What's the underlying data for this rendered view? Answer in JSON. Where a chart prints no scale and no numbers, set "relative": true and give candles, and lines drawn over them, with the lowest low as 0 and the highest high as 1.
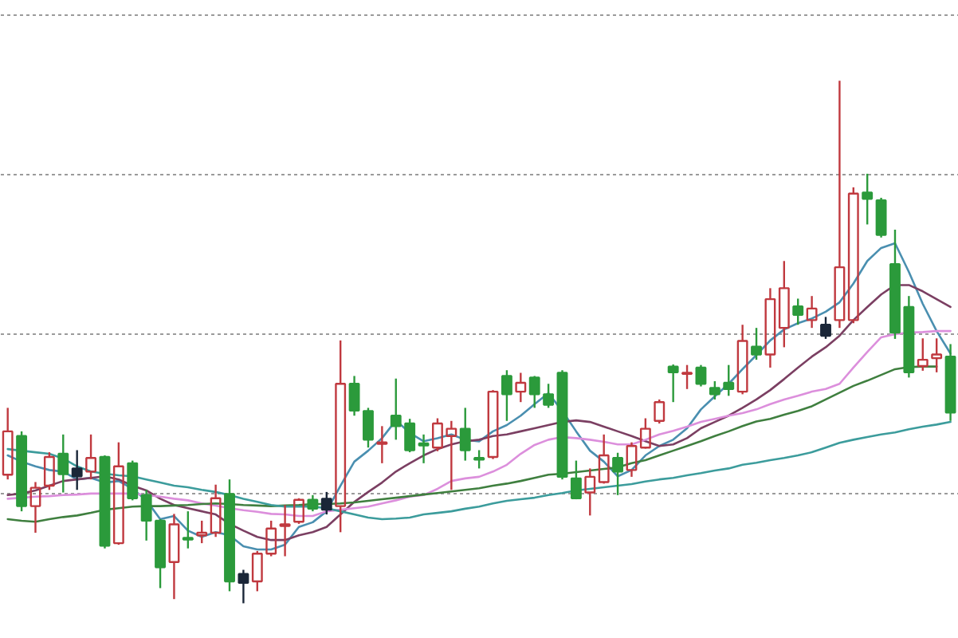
{
  "chart_data": {
    "type": "candlestick",
    "relative": true,
    "grid": "y",
    "categories": [
      null,
      null,
      null,
      null,
      null,
      null,
      null,
      null,
      null,
      null,
      null,
      null,
      null,
      null,
      null,
      null,
      null,
      null,
      null,
      null,
      null,
      null,
      null,
      null,
      null,
      null,
      null,
      null,
      null,
      null,
      null,
      null,
      null,
      null,
      null,
      null,
      null,
      null,
      null,
      null,
      null,
      null,
      null,
      null,
      null,
      null,
      null,
      null,
      null,
      null,
      null,
      null,
      null,
      null,
      null,
      null,
      null,
      null,
      null,
      null,
      null,
      null,
      null,
      null,
      null,
      null,
      null,
      null,
      null
    ],
    "ohlc": [
      [
        0.246,
        0.374,
        0.237,
        0.329
      ],
      [
        0.32,
        0.329,
        0.176,
        0.186
      ],
      [
        0.186,
        0.232,
        0.135,
        0.221
      ],
      [
        0.225,
        0.289,
        0.217,
        0.28
      ],
      [
        0.286,
        0.323,
        0.212,
        0.247
      ],
      [
        0.258,
        0.293,
        0.217,
        0.243
      ],
      [
        0.252,
        0.323,
        0.237,
        0.278
      ],
      [
        0.28,
        0.283,
        0.105,
        0.11
      ],
      [
        0.115,
        0.308,
        0.112,
        0.262
      ],
      [
        0.268,
        0.273,
        0.197,
        0.201
      ],
      [
        0.207,
        0.217,
        0.12,
        0.158
      ],
      [
        0.158,
        0.161,
        0.029,
        0.069
      ],
      [
        0.079,
        0.171,
        0.008,
        0.151
      ],
      [
        0.125,
        0.176,
        0.105,
        0.122
      ],
      [
        0.13,
        0.158,
        0.115,
        0.135
      ],
      [
        0.135,
        0.227,
        0.127,
        0.201
      ],
      [
        0.209,
        0.237,
        0.023,
        0.042
      ],
      [
        0.056,
        0.064,
        0.0,
        0.039
      ],
      [
        0.042,
        0.1,
        0.023,
        0.095
      ],
      [
        0.095,
        0.158,
        0.09,
        0.143
      ],
      [
        0.148,
        0.188,
        0.09,
        0.151
      ],
      [
        0.156,
        0.201,
        0.152,
        0.198
      ],
      [
        0.198,
        0.207,
        0.176,
        0.181
      ],
      [
        0.2,
        0.213,
        0.17,
        0.179
      ],
      [
        0.186,
        0.503,
        0.136,
        0.42
      ],
      [
        0.42,
        0.435,
        0.359,
        0.369
      ],
      [
        0.368,
        0.374,
        0.298,
        0.313
      ],
      [
        0.305,
        0.339,
        0.268,
        0.308
      ],
      [
        0.359,
        0.43,
        0.313,
        0.339
      ],
      [
        0.344,
        0.353,
        0.289,
        0.293
      ],
      [
        0.306,
        0.323,
        0.268,
        0.302
      ],
      [
        0.298,
        0.354,
        0.291,
        0.344
      ],
      [
        0.32,
        0.349,
        0.217,
        0.334
      ],
      [
        0.334,
        0.374,
        0.273,
        0.293
      ],
      [
        0.278,
        0.293,
        0.258,
        0.275
      ],
      [
        0.28,
        0.408,
        0.276,
        0.405
      ],
      [
        0.435,
        0.446,
        0.349,
        0.4
      ],
      [
        0.405,
        0.441,
        0.385,
        0.422
      ],
      [
        0.432,
        0.435,
        0.374,
        0.4
      ],
      [
        0.4,
        0.42,
        0.374,
        0.38
      ],
      [
        0.441,
        0.446,
        0.237,
        0.242
      ],
      [
        0.239,
        0.273,
        0.199,
        0.201
      ],
      [
        0.212,
        0.258,
        0.168,
        0.242
      ],
      [
        0.232,
        0.323,
        0.229,
        0.283
      ],
      [
        0.278,
        0.288,
        0.207,
        0.252
      ],
      [
        0.255,
        0.308,
        0.242,
        0.301
      ],
      [
        0.298,
        0.354,
        0.296,
        0.334
      ],
      [
        0.349,
        0.39,
        0.344,
        0.385
      ],
      [
        0.453,
        0.457,
        0.385,
        0.442
      ],
      [
        0.439,
        0.456,
        0.41,
        0.441
      ],
      [
        0.451,
        0.456,
        0.415,
        0.42
      ],
      [
        0.412,
        0.425,
        0.39,
        0.4
      ],
      [
        0.422,
        0.456,
        0.397,
        0.41
      ],
      [
        0.405,
        0.533,
        0.4,
        0.502
      ],
      [
        0.491,
        0.527,
        0.466,
        0.476
      ],
      [
        0.476,
        0.603,
        0.451,
        0.582
      ],
      [
        0.527,
        0.655,
        0.49,
        0.603
      ],
      [
        0.568,
        0.583,
        0.533,
        0.552
      ],
      [
        0.542,
        0.588,
        0.527,
        0.564
      ],
      [
        0.533,
        0.548,
        0.506,
        0.512
      ],
      [
        0.542,
        1.0,
        0.527,
        0.643
      ],
      [
        0.542,
        0.796,
        0.536,
        0.784
      ],
      [
        0.786,
        0.822,
        0.725,
        0.774
      ],
      [
        0.771,
        0.776,
        0.7,
        0.705
      ],
      [
        0.649,
        0.715,
        0.506,
        0.518
      ],
      [
        0.567,
        0.588,
        0.432,
        0.442
      ],
      [
        0.454,
        0.507,
        0.445,
        0.466
      ],
      [
        0.469,
        0.507,
        0.442,
        0.476
      ],
      [
        0.472,
        0.496,
        0.349,
        0.365
      ]
    ],
    "colors": [
      "#c0393f",
      "#2b9a3b",
      "#c0393f",
      "#c0393f",
      "#2b9a3b",
      "#1a2638",
      "#c0393f",
      "#2b9a3b",
      "#c0393f",
      "#2b9a3b",
      "#2b9a3b",
      "#2b9a3b",
      "#c0393f",
      "#2b9a3b",
      "#c0393f",
      "#c0393f",
      "#2b9a3b",
      "#1a2638",
      "#c0393f",
      "#c0393f",
      "#c0393f",
      "#c0393f",
      "#2b9a3b",
      "#1a2638",
      "#c0393f",
      "#2b9a3b",
      "#2b9a3b",
      "#c0393f",
      "#2b9a3b",
      "#2b9a3b",
      "#2b9a3b",
      "#c0393f",
      "#c0393f",
      "#2b9a3b",
      "#2b9a3b",
      "#c0393f",
      "#2b9a3b",
      "#c0393f",
      "#2b9a3b",
      "#2b9a3b",
      "#2b9a3b",
      "#2b9a3b",
      "#c0393f",
      "#c0393f",
      "#2b9a3b",
      "#c0393f",
      "#c0393f",
      "#c0393f",
      "#2b9a3b",
      "#c0393f",
      "#2b9a3b",
      "#2b9a3b",
      "#2b9a3b",
      "#c0393f",
      "#2b9a3b",
      "#c0393f",
      "#c0393f",
      "#2b9a3b",
      "#c0393f",
      "#1a2638",
      "#c0393f",
      "#c0393f",
      "#2b9a3b",
      "#2b9a3b",
      "#2b9a3b",
      "#2b9a3b",
      "#c0393f",
      "#c0393f",
      "#2b9a3b"
    ],
    "series": [
      {
        "type": "line",
        "color": "#4a8fb0",
        "values": [
          0.283,
          0.271,
          0.262,
          0.255,
          0.252,
          0.237,
          0.24,
          0.231,
          0.234,
          0.219,
          0.197,
          0.161,
          0.167,
          0.139,
          0.127,
          0.136,
          0.13,
          0.109,
          0.103,
          0.103,
          0.112,
          0.146,
          0.155,
          0.176,
          0.225,
          0.271,
          0.292,
          0.316,
          0.35,
          0.326,
          0.31,
          0.316,
          0.323,
          0.313,
          0.31,
          0.329,
          0.341,
          0.359,
          0.381,
          0.402,
          0.368,
          0.329,
          0.292,
          0.271,
          0.243,
          0.255,
          0.283,
          0.301,
          0.313,
          0.335,
          0.371,
          0.396,
          0.42,
          0.448,
          0.475,
          0.503,
          0.524,
          0.536,
          0.545,
          0.558,
          0.576,
          0.612,
          0.655,
          0.68,
          0.689,
          0.634,
          0.573,
          0.521,
          0.478
        ]
      },
      {
        "type": "line",
        "color": "#7b3f62",
        "values": [
          0.207,
          0.21,
          0.216,
          0.225,
          0.234,
          0.237,
          0.24,
          0.243,
          0.237,
          0.225,
          0.216,
          0.2,
          0.188,
          0.182,
          0.176,
          0.17,
          0.152,
          0.139,
          0.127,
          0.121,
          0.121,
          0.13,
          0.136,
          0.146,
          0.17,
          0.194,
          0.213,
          0.231,
          0.252,
          0.268,
          0.283,
          0.295,
          0.304,
          0.31,
          0.313,
          0.32,
          0.323,
          0.329,
          0.335,
          0.341,
          0.347,
          0.35,
          0.347,
          0.338,
          0.329,
          0.32,
          0.31,
          0.301,
          0.304,
          0.316,
          0.335,
          0.347,
          0.359,
          0.374,
          0.39,
          0.408,
          0.429,
          0.451,
          0.472,
          0.49,
          0.512,
          0.542,
          0.567,
          0.591,
          0.609,
          0.609,
          0.597,
          0.582,
          0.567
        ]
      },
      {
        "type": "line",
        "color": "#dc8fdc",
        "values": [
          0.2,
          0.202,
          0.204,
          0.205,
          0.207,
          0.208,
          0.21,
          0.21,
          0.21,
          0.21,
          0.207,
          0.204,
          0.2,
          0.197,
          0.191,
          0.187,
          0.182,
          0.178,
          0.175,
          0.171,
          0.17,
          0.167,
          0.167,
          0.176,
          0.179,
          0.182,
          0.185,
          0.191,
          0.197,
          0.204,
          0.207,
          0.219,
          0.234,
          0.239,
          0.242,
          0.252,
          0.265,
          0.286,
          0.303,
          0.313,
          0.318,
          0.316,
          0.313,
          0.309,
          0.304,
          0.304,
          0.313,
          0.323,
          0.33,
          0.338,
          0.347,
          0.353,
          0.359,
          0.364,
          0.371,
          0.381,
          0.39,
          0.397,
          0.405,
          0.41,
          0.42,
          0.451,
          0.481,
          0.509,
          0.515,
          0.518,
          0.519,
          0.521,
          0.521
        ]
      },
      {
        "type": "line",
        "color": "#3f7f3f",
        "values": [
          0.161,
          0.158,
          0.156,
          0.161,
          0.165,
          0.168,
          0.173,
          0.179,
          0.182,
          0.185,
          0.186,
          0.186,
          0.187,
          0.188,
          0.19,
          0.191,
          0.19,
          0.188,
          0.187,
          0.186,
          0.187,
          0.188,
          0.19,
          0.19,
          0.191,
          0.193,
          0.196,
          0.199,
          0.202,
          0.205,
          0.208,
          0.211,
          0.214,
          0.217,
          0.22,
          0.225,
          0.229,
          0.234,
          0.24,
          0.246,
          0.248,
          0.251,
          0.254,
          0.257,
          0.26,
          0.268,
          0.274,
          0.283,
          0.292,
          0.301,
          0.31,
          0.32,
          0.329,
          0.339,
          0.348,
          0.353,
          0.361,
          0.368,
          0.377,
          0.39,
          0.403,
          0.416,
          0.426,
          0.437,
          0.448,
          0.452,
          0.453,
          0.453,
          null
        ]
      },
      {
        "type": "line",
        "color": "#3c9c9c",
        "values": [
          0.295,
          0.292,
          0.289,
          0.286,
          0.277,
          0.262,
          0.252,
          0.248,
          0.245,
          0.243,
          0.237,
          0.231,
          0.225,
          0.222,
          0.217,
          0.213,
          0.207,
          0.2,
          0.194,
          0.188,
          0.185,
          0.185,
          0.185,
          0.182,
          0.176,
          0.17,
          0.164,
          0.161,
          0.162,
          0.164,
          0.17,
          0.173,
          0.176,
          0.181,
          0.185,
          0.191,
          0.196,
          0.199,
          0.202,
          0.207,
          0.211,
          0.216,
          0.219,
          0.222,
          0.225,
          0.228,
          0.233,
          0.237,
          0.24,
          0.245,
          0.249,
          0.254,
          0.258,
          0.265,
          0.269,
          0.274,
          0.278,
          0.283,
          0.289,
          0.298,
          0.307,
          0.313,
          0.318,
          0.323,
          0.327,
          0.333,
          0.338,
          0.342,
          0.347
        ]
      }
    ]
  }
}
